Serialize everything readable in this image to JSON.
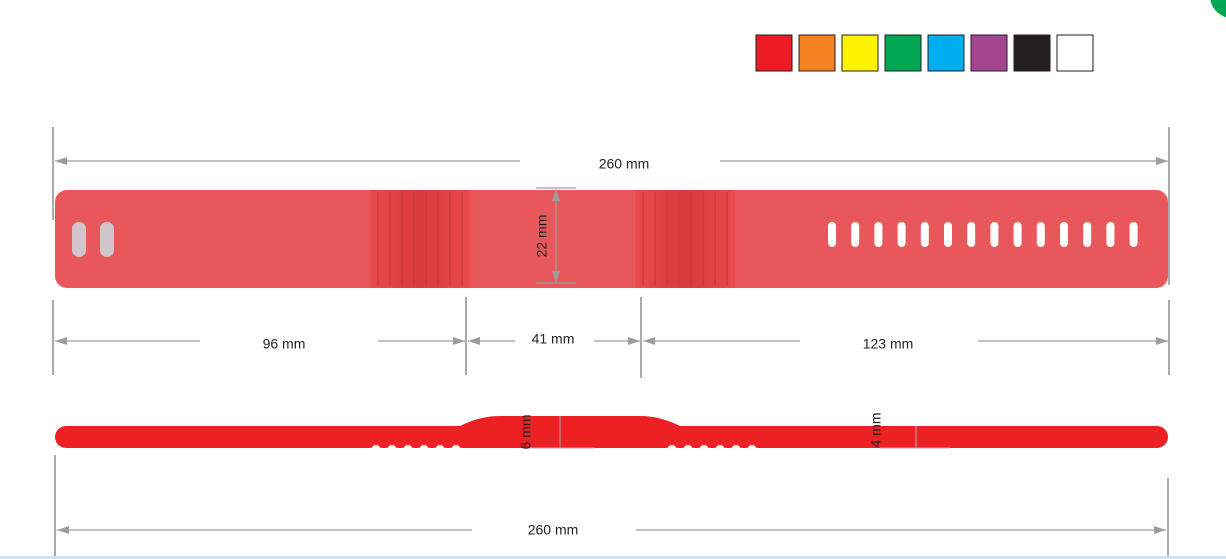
{
  "color_options": [
    "#ed1c24",
    "#f58220",
    "#fff200",
    "#00a651",
    "#00aeef",
    "#a3458f",
    "#231f20",
    "#ffffff"
  ],
  "top_view": {
    "total_length": "260 mm",
    "width": "22 mm",
    "segment_left": "96 mm",
    "segment_middle": "41 mm",
    "segment_right": "123 mm"
  },
  "side_view": {
    "thickness_thick": "6 mm",
    "thickness_thin": "4 mm",
    "total_length": "260 mm"
  }
}
